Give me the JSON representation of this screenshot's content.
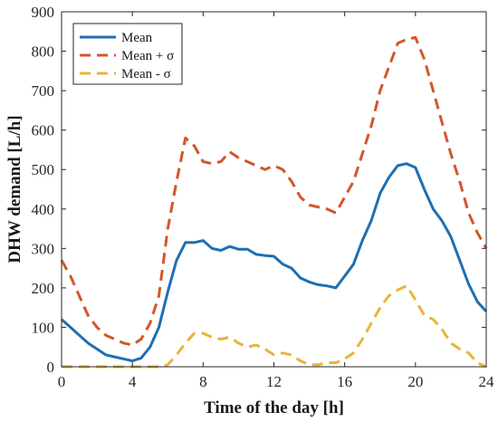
{
  "chart_data": {
    "type": "line",
    "title": "",
    "xlabel": "Time of the day [h]",
    "ylabel": "DHW demand [L/h]",
    "xlim": [
      0,
      24
    ],
    "ylim": [
      0,
      900
    ],
    "xticks": [
      0,
      4,
      8,
      12,
      16,
      20,
      24
    ],
    "yticks": [
      0,
      100,
      200,
      300,
      400,
      500,
      600,
      700,
      800,
      900
    ],
    "grid": false,
    "legend_position": "top-left",
    "series": [
      {
        "name": "Mean",
        "color": "#1f6fb2",
        "dash": "solid",
        "x": [
          0,
          0.5,
          1,
          1.5,
          2,
          2.5,
          3,
          3.5,
          4,
          4.5,
          5,
          5.5,
          6,
          6.5,
          7,
          7.5,
          8,
          8.5,
          9,
          9.5,
          10,
          10.5,
          11,
          11.5,
          12,
          12.5,
          13,
          13.5,
          14,
          14.5,
          15,
          15.5,
          16,
          16.5,
          17,
          17.5,
          18,
          18.5,
          19,
          19.5,
          20,
          20.5,
          21,
          21.5,
          22,
          22.5,
          23,
          23.5,
          24
        ],
        "values": [
          120,
          100,
          80,
          60,
          45,
          30,
          25,
          20,
          15,
          22,
          50,
          100,
          190,
          270,
          315,
          315,
          320,
          300,
          295,
          305,
          298,
          298,
          285,
          282,
          280,
          260,
          250,
          225,
          215,
          208,
          205,
          200,
          230,
          260,
          320,
          370,
          440,
          480,
          510,
          515,
          505,
          450,
          400,
          370,
          330,
          270,
          210,
          165,
          140
        ]
      },
      {
        "name": "Mean + σ",
        "color": "#d4562a",
        "dash": "dashed",
        "x": [
          0,
          0.5,
          1,
          1.5,
          2,
          2.5,
          3,
          3.5,
          4,
          4.5,
          5,
          5.5,
          6,
          6.5,
          7,
          7.5,
          8,
          8.5,
          9,
          9.5,
          10,
          10.5,
          11,
          11.5,
          12,
          12.5,
          13,
          13.5,
          14,
          14.5,
          15,
          15.5,
          16,
          16.5,
          17,
          17.5,
          18,
          18.5,
          19,
          19.5,
          20,
          20.5,
          21,
          21.5,
          22,
          22.5,
          23,
          23.5,
          24
        ],
        "values": [
          270,
          230,
          180,
          130,
          100,
          80,
          70,
          60,
          55,
          70,
          110,
          180,
          350,
          470,
          580,
          560,
          520,
          515,
          520,
          545,
          530,
          520,
          510,
          500,
          510,
          500,
          470,
          430,
          410,
          405,
          400,
          390,
          430,
          470,
          540,
          610,
          700,
          760,
          820,
          830,
          835,
          780,
          700,
          620,
          540,
          470,
          390,
          340,
          300
        ]
      },
      {
        "name": "Mean - σ",
        "color": "#e8b43a",
        "dash": "dashed",
        "x": [
          0,
          0.5,
          1,
          1.5,
          2,
          2.5,
          3,
          3.5,
          4,
          4.5,
          5,
          5.5,
          6,
          6.5,
          7,
          7.5,
          8,
          8.5,
          9,
          9.5,
          10,
          10.5,
          11,
          11.5,
          12,
          12.5,
          13,
          13.5,
          14,
          14.5,
          15,
          15.5,
          16,
          16.5,
          17,
          17.5,
          18,
          18.5,
          19,
          19.5,
          20,
          20.5,
          21,
          21.5,
          22,
          22.5,
          23,
          23.5,
          24
        ],
        "values": [
          0,
          0,
          0,
          0,
          0,
          0,
          0,
          0,
          0,
          0,
          0,
          0,
          5,
          30,
          60,
          85,
          85,
          75,
          70,
          75,
          60,
          50,
          55,
          45,
          30,
          35,
          30,
          15,
          5,
          5,
          10,
          10,
          20,
          35,
          70,
          110,
          150,
          180,
          195,
          205,
          170,
          130,
          120,
          95,
          60,
          45,
          35,
          10,
          0
        ]
      }
    ]
  }
}
